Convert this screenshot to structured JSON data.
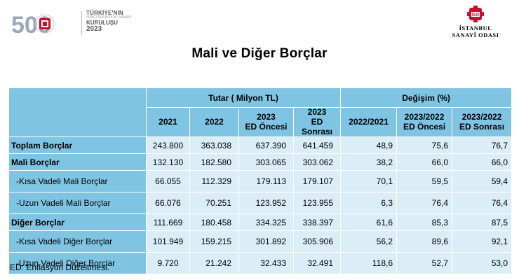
{
  "header": {
    "logo_left": {
      "number": "500",
      "line1": "TÜRKİYE'NİN",
      "line2": "İKİNCİ 500 BÜYÜK SANAYİ",
      "line3": "KURULUŞU",
      "year": "2023"
    },
    "logo_right": {
      "mark": "İSO",
      "name_line1": "İSTANBUL",
      "name_line2": "SANAYİ ODASI"
    }
  },
  "title": "Mali ve Diğer Borçlar",
  "table": {
    "group_headers": {
      "amount": "Tutar ( Milyon TL)",
      "change": "Değişim (%)"
    },
    "columns": [
      {
        "l1": "2021",
        "l2": ""
      },
      {
        "l1": "2022",
        "l2": ""
      },
      {
        "l1": "2023",
        "l2": "ED Öncesi"
      },
      {
        "l1": "2023",
        "l2": "ED Sonrası"
      },
      {
        "l1": "2022/2021",
        "l2": ""
      },
      {
        "l1": "2023/2022",
        "l2": "ED Öncesi"
      },
      {
        "l1": "2023/2022",
        "l2": "ED Sonrası"
      }
    ],
    "rows": [
      {
        "label": "Toplam Borçlar",
        "values": [
          "243.800",
          "363.038",
          "637.390",
          "641.459",
          "48,9",
          "75,6",
          "76,7"
        ]
      },
      {
        "label": "Mali Borçlar",
        "values": [
          "132.130",
          "182.580",
          "303.065",
          "303.062",
          "38,2",
          "66,0",
          "66,0"
        ]
      },
      {
        "label": "-Kısa Vadeli Mali Borçlar",
        "values": [
          "66.055",
          "112.329",
          "179.113",
          "179.107",
          "70,1",
          "59,5",
          "59,4"
        ]
      },
      {
        "label": "-Uzun Vadeli Mali Borçlar",
        "values": [
          "66.076",
          "70.251",
          "123.952",
          "123.955",
          "6,3",
          "76,4",
          "76,4"
        ]
      },
      {
        "label": "Diğer Borçlar",
        "values": [
          "111.669",
          "180.458",
          "334.325",
          "338.397",
          "61,6",
          "85,3",
          "87,5"
        ]
      },
      {
        "label": "-Kısa Vadeli Diğer Borçlar",
        "values": [
          "101.949",
          "159.215",
          "301.892",
          "305.906",
          "56,2",
          "89,6",
          "92,1"
        ]
      },
      {
        "label": "-Uzun Vadeli Diğer Borçlar",
        "values": [
          "9.720",
          "21.242",
          "32.433",
          "32.491",
          "118,6",
          "52,7",
          "53,0"
        ]
      }
    ]
  },
  "footnote": "ED: Enflasyon Düzeltmesi."
}
